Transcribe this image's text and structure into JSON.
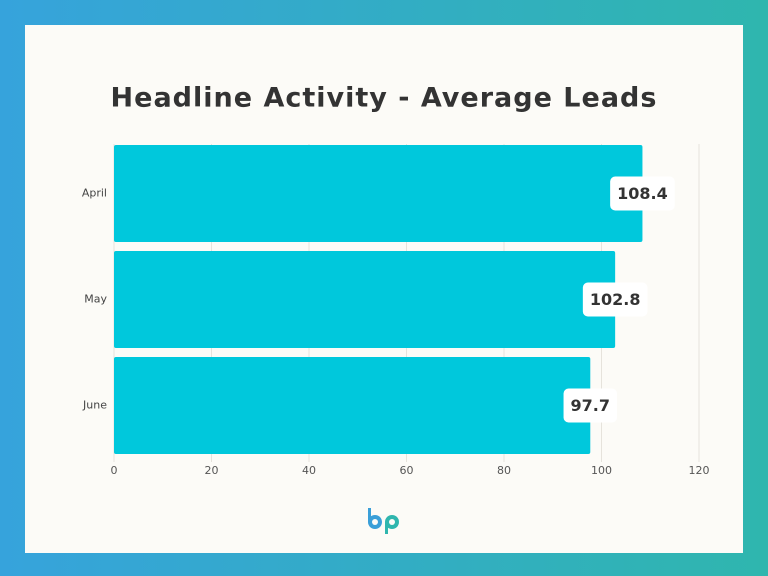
{
  "chart_data": {
    "type": "bar",
    "orientation": "horizontal",
    "title": "Headline Activity - Average Leads",
    "categories": [
      "April",
      "May",
      "June"
    ],
    "values": [
      108.4,
      102.8,
      97.7
    ],
    "color": "#00c8dc",
    "xlim": [
      0,
      120
    ],
    "xticks": [
      0,
      20,
      40,
      60,
      80,
      100,
      120
    ],
    "grid": true,
    "data_labels": true
  }
}
